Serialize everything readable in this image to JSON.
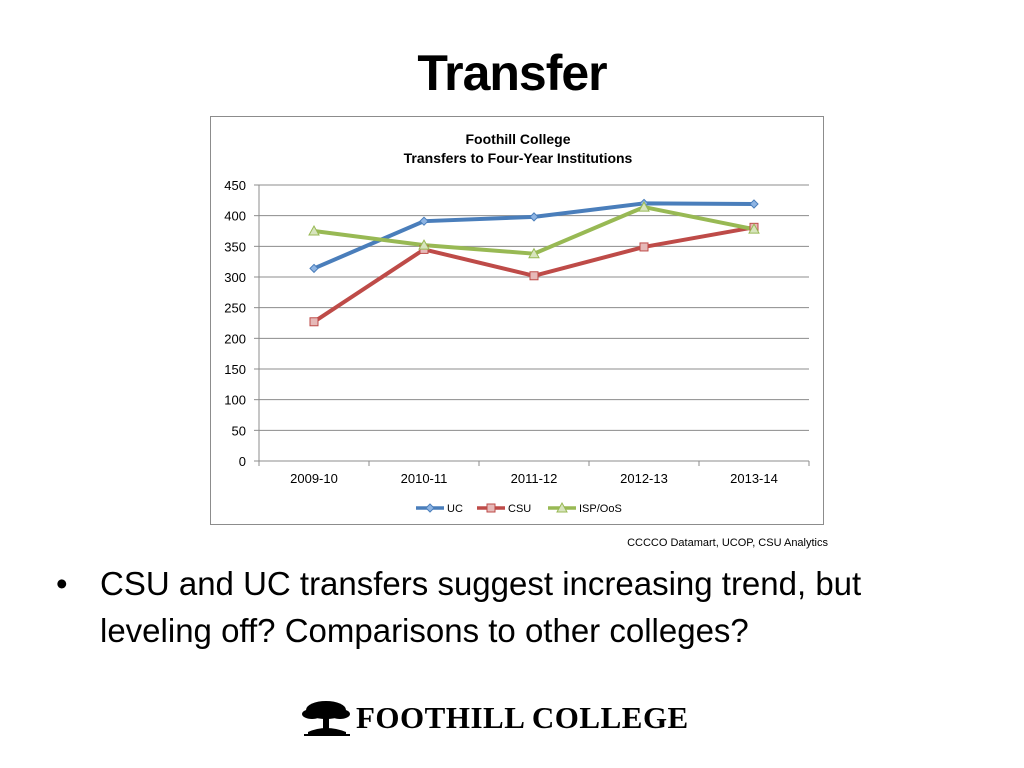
{
  "slide": {
    "title": "Transfer",
    "source_note": "CCCCO Datamart, UCOP, CSU Analytics",
    "bullet_marker": "•",
    "bullet_text": "CSU and UC transfers suggest increasing trend, but leveling off? Comparisons to other colleges?",
    "logo_text": "FOOTHILL COLLEGE"
  },
  "chart_data": {
    "type": "line",
    "title": "Foothill College",
    "subtitle": "Transfers to Four-Year Institutions",
    "xlabel": "",
    "ylabel": "",
    "categories": [
      "2009-10",
      "2010-11",
      "2011-12",
      "2012-13",
      "2013-14"
    ],
    "ylim": [
      0,
      450
    ],
    "yticks": [
      0,
      50,
      100,
      150,
      200,
      250,
      300,
      350,
      400,
      450
    ],
    "grid": true,
    "legend": "bottom",
    "series": [
      {
        "name": "UC",
        "values": [
          314,
          391,
          398,
          420,
          419
        ],
        "color": "#4a7ebb",
        "marker": "diamond"
      },
      {
        "name": "CSU",
        "values": [
          227,
          345,
          302,
          349,
          381
        ],
        "color": "#be4b48",
        "marker": "square"
      },
      {
        "name": "ISP/OoS",
        "values": [
          375,
          352,
          338,
          414,
          378
        ],
        "color": "#98b954",
        "marker": "triangle"
      }
    ]
  }
}
